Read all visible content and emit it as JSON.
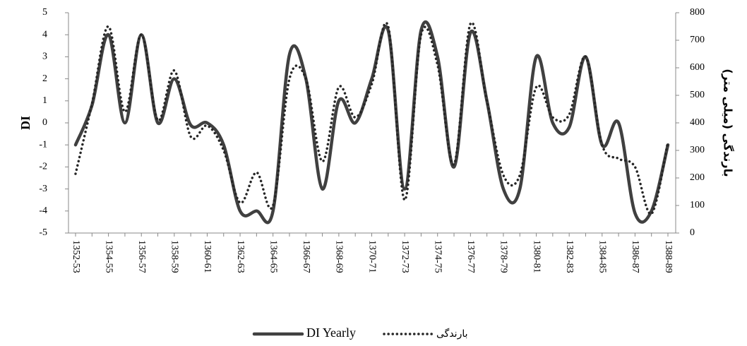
{
  "chart_data": {
    "type": "line",
    "y_label": "DI",
    "y2_label": "بارندگی (میلی متر)",
    "categories": [
      "1352-53",
      null,
      "1354-55",
      null,
      "1356-57",
      null,
      "1358-59",
      null,
      "1360-61",
      null,
      "1362-63",
      null,
      "1364-65",
      null,
      "1366-67",
      null,
      "1368-69",
      null,
      "1370-71",
      null,
      "1372-73",
      null,
      "1374-75",
      null,
      "1376-77",
      null,
      "1378-79",
      null,
      "1380-81",
      null,
      "1382-83",
      null,
      "1384-85",
      null,
      "1386-87",
      null,
      "1388-89"
    ],
    "series": [
      {
        "name": "DI Yearly",
        "color": "#404040",
        "style": "solid",
        "axis": "y",
        "values": [
          -1.0,
          0.8,
          4.0,
          0.0,
          4.0,
          0.0,
          2.0,
          -0.1,
          0.0,
          -1.0,
          -4.0,
          -4.0,
          -4.0,
          3.1,
          2.0,
          -3.0,
          1.0,
          0.0,
          2.0,
          4.2,
          -3.0,
          4.2,
          3.0,
          -2.0,
          4.1,
          1.0,
          -3.0,
          -3.0,
          3.0,
          0.0,
          -0.2,
          3.0,
          -1.0,
          0.0,
          -4.1,
          -4.0,
          -1.0
        ]
      },
      {
        "name": "بارندگی",
        "color": "#262626",
        "style": "dotted",
        "axis": "y2",
        "values": [
          215,
          470,
          750,
          440,
          720,
          410,
          590,
          350,
          390,
          300,
          110,
          220,
          100,
          560,
          560,
          260,
          530,
          420,
          540,
          750,
          120,
          720,
          610,
          250,
          760,
          480,
          210,
          210,
          530,
          420,
          430,
          640,
          320,
          270,
          240,
          70,
          330
        ]
      }
    ],
    "ylim": [
      -5,
      5
    ],
    "yticks": [
      -5,
      -4,
      -3,
      -2,
      -1,
      0,
      1,
      2,
      3,
      4,
      5
    ],
    "y2lim": [
      0,
      800
    ],
    "y2ticks": [
      0,
      100,
      200,
      300,
      400,
      500,
      600,
      700,
      800
    ],
    "legend": "bottom"
  }
}
